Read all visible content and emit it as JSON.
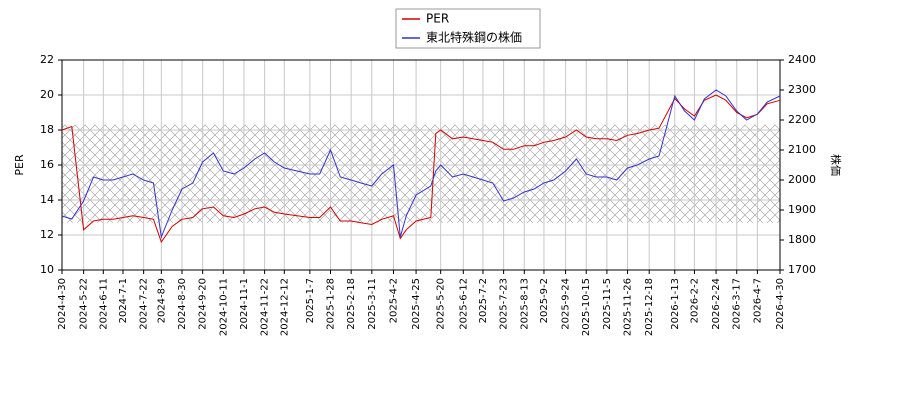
{
  "chart_data": {
    "type": "line",
    "x": [
      "2024-4-30",
      "2024-5-10",
      "2024-5-22",
      "2024-6-1",
      "2024-6-11",
      "2024-6-21",
      "2024-7-1",
      "2024-7-11",
      "2024-7-22",
      "2024-8-1",
      "2024-8-9",
      "2024-8-20",
      "2024-8-30",
      "2024-9-10",
      "2024-9-20",
      "2024-10-1",
      "2024-10-11",
      "2024-10-22",
      "2024-11-1",
      "2024-11-12",
      "2024-11-22",
      "2024-12-2",
      "2024-12-12",
      "2025-1-7",
      "2025-1-17",
      "2025-1-28",
      "2025-2-7",
      "2025-2-18",
      "2025-2-28",
      "2025-3-11",
      "2025-3-21",
      "2025-4-2",
      "2025-4-9",
      "2025-4-15",
      "2025-4-25",
      "2025-5-10",
      "2025-5-15",
      "2025-5-20",
      "2025-6-1",
      "2025-6-12",
      "2025-6-22",
      "2025-7-2",
      "2025-7-12",
      "2025-7-23",
      "2025-8-2",
      "2025-8-13",
      "2025-8-23",
      "2025-9-2",
      "2025-9-12",
      "2025-9-24",
      "2025-10-5",
      "2025-10-15",
      "2025-10-25",
      "2025-11-5",
      "2025-11-15",
      "2025-11-26",
      "2025-12-6",
      "2025-12-18",
      "2025-12-28",
      "2026-1-13",
      "2026-1-23",
      "2026-2-2",
      "2026-2-12",
      "2026-2-24",
      "2026-3-6",
      "2026-3-17",
      "2026-3-27",
      "2026-4-7",
      "2026-4-17",
      "2026-4-30"
    ],
    "series": [
      {
        "name": "PER",
        "color": "#d40000",
        "values": [
          18.0,
          18.2,
          12.3,
          12.8,
          12.9,
          12.9,
          13.0,
          13.1,
          13.0,
          12.9,
          11.6,
          12.5,
          12.9,
          13.0,
          13.5,
          13.6,
          13.1,
          13.0,
          13.2,
          13.5,
          13.6,
          13.3,
          13.2,
          13.0,
          13.0,
          13.6,
          12.8,
          12.8,
          12.7,
          12.6,
          12.9,
          13.1,
          11.8,
          12.3,
          12.8,
          13.0,
          17.8,
          18.0,
          17.5,
          17.6,
          17.5,
          17.4,
          17.3,
          16.9,
          16.9,
          17.1,
          17.1,
          17.3,
          17.4,
          17.6,
          18.0,
          17.6,
          17.5,
          17.5,
          17.4,
          17.7,
          17.8,
          18.0,
          18.1,
          19.8,
          19.2,
          18.8,
          19.7,
          20.0,
          19.7,
          19.0,
          18.7,
          18.9,
          19.5,
          19.7
        ]
      },
      {
        "name": "東北特殊鋼の株価",
        "color": "#3232d0",
        "axis": "y2",
        "values": [
          1880,
          1870,
          1930,
          2010,
          2000,
          2000,
          2010,
          2020,
          2000,
          1990,
          1810,
          1900,
          1970,
          1990,
          2060,
          2090,
          2030,
          2020,
          2040,
          2070,
          2090,
          2060,
          2040,
          2020,
          2020,
          2100,
          2010,
          2000,
          1990,
          1980,
          2020,
          2050,
          1810,
          1880,
          1950,
          1980,
          2030,
          2050,
          2010,
          2020,
          2010,
          2000,
          1990,
          1930,
          1940,
          1960,
          1970,
          1990,
          2000,
          2030,
          2070,
          2020,
          2010,
          2010,
          2000,
          2040,
          2050,
          2070,
          2080,
          2280,
          2230,
          2200,
          2270,
          2300,
          2280,
          2230,
          2200,
          2220,
          2260,
          2280
        ]
      }
    ],
    "xticks": [
      "2024-4-30",
      "2024-5-22",
      "2024-6-11",
      "2024-7-1",
      "2024-7-22",
      "2024-8-9",
      "2024-8-30",
      "2024-9-20",
      "2024-10-11",
      "2024-11-1",
      "2024-11-22",
      "2024-12-12",
      "2025-1-7",
      "2025-1-28",
      "2025-2-18",
      "2025-3-11",
      "2025-4-2",
      "2025-4-25",
      "2025-5-20",
      "2025-6-12",
      "2025-7-2",
      "2025-7-23",
      "2025-8-13",
      "2025-9-2",
      "2025-9-24",
      "2025-10-15",
      "2025-11-5",
      "2025-11-26",
      "2025-12-18",
      "2026-1-13",
      "2026-2-2",
      "2026-2-24",
      "2026-3-17",
      "2026-4-7",
      "2026-4-30"
    ],
    "xlim": [
      "2024-4-30",
      "2026-4-30"
    ],
    "ylabel": "PER",
    "ylim": [
      10,
      22
    ],
    "yticks": [
      10,
      12,
      14,
      16,
      18,
      20,
      22
    ],
    "y2label": "株価",
    "y2lim": [
      1700,
      2400
    ],
    "y2ticks": [
      1700,
      1800,
      1900,
      2000,
      2100,
      2200,
      2300,
      2400
    ],
    "shaded_range": [
      12.7,
      18.3
    ],
    "grid": true,
    "legend": "upper center"
  }
}
